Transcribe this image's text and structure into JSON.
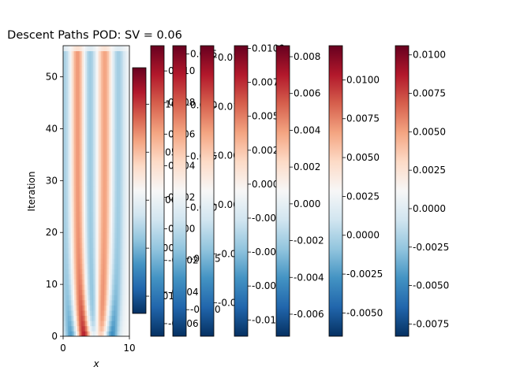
{
  "chart_data": {
    "type": "heatmap",
    "title": "Descent Paths POD: SV = 0.06",
    "xlabel": "x",
    "ylabel": "Iteration",
    "xlim": [
      0,
      10
    ],
    "ylim": [
      0,
      56
    ],
    "xticks": [
      "0",
      "10"
    ],
    "yticks": [
      "0",
      "10",
      "20",
      "30",
      "40",
      "50"
    ],
    "colormap": [
      "#053061",
      "#2166ac",
      "#4393c3",
      "#92c5de",
      "#d1e5f0",
      "#f7f7f7",
      "#fddbc7",
      "#f4a582",
      "#d6604d",
      "#b2182b",
      "#67001f"
    ],
    "heatmap": {
      "x_range": [
        0,
        10
      ],
      "y_range": [
        0,
        56
      ],
      "stripes": [
        {
          "x": 0.3,
          "v": -0.6
        },
        {
          "x": 2.2,
          "v": 0.85
        },
        {
          "x": 4.0,
          "v": -0.7
        },
        {
          "x": 6.3,
          "v": 0.75
        },
        {
          "x": 8.3,
          "v": -0.65
        }
      ]
    },
    "colorbars": [
      {
        "ticks": [
          "-0.010",
          "-0.005",
          "0.000",
          "0.005",
          "0.010"
        ],
        "tick_values": [
          -0.01,
          -0.005,
          0.0,
          0.005,
          0.01
        ],
        "vmin": -0.0118,
        "vmax": 0.0138
      },
      {
        "ticks": [
          "-0.006",
          "-0.004",
          "-0.002",
          "0.000",
          "0.002",
          "0.004",
          "0.006",
          "0.008",
          "0.010"
        ],
        "tick_values": [
          -0.006,
          -0.004,
          -0.002,
          0.0,
          0.002,
          0.004,
          0.006,
          0.008,
          0.01
        ],
        "vmin": -0.0068,
        "vmax": 0.0116
      },
      {
        "ticks": [
          "-0.010",
          "-0.005",
          "0.000",
          "0.005",
          "0.010",
          "0.015"
        ],
        "tick_values": [
          -0.01,
          -0.005,
          0.0,
          0.005,
          0.01,
          0.015
        ],
        "vmin": -0.0126,
        "vmax": 0.0158
      },
      {
        "ticks": [
          "-0.010",
          "-0.005",
          "0.000",
          "0.005",
          "0.010",
          "0.015"
        ],
        "tick_values": [
          -0.01,
          -0.005,
          0.0,
          0.005,
          0.01,
          0.015
        ],
        "vmin": -0.0134,
        "vmax": 0.0162
      },
      {
        "ticks": [
          "-0.0100",
          "-0.0075",
          "-0.0050",
          "-0.0025",
          "0.0000",
          "0.0025",
          "0.0050",
          "0.0075",
          "0.0100"
        ],
        "tick_values": [
          -0.01,
          -0.0075,
          -0.005,
          -0.0025,
          0.0,
          0.0025,
          0.005,
          0.0075,
          0.01
        ],
        "vmin": -0.0112,
        "vmax": 0.0102
      },
      {
        "ticks": [
          "-0.006",
          "-0.004",
          "-0.002",
          "0.000",
          "0.002",
          "0.004",
          "0.006",
          "0.008"
        ],
        "tick_values": [
          -0.006,
          -0.004,
          -0.002,
          0.0,
          0.002,
          0.004,
          0.006,
          0.008
        ],
        "vmin": -0.0072,
        "vmax": 0.0086
      },
      {
        "ticks": [
          "-0.0050",
          "-0.0025",
          "0.0000",
          "0.0025",
          "0.0050",
          "0.0075",
          "0.0100"
        ],
        "tick_values": [
          -0.005,
          -0.0025,
          0.0,
          0.0025,
          0.005,
          0.0075,
          0.01
        ],
        "vmin": -0.0065,
        "vmax": 0.0122
      },
      {
        "ticks": [
          "-0.0075",
          "-0.0050",
          "-0.0025",
          "0.0000",
          "0.0025",
          "0.0050",
          "0.0075",
          "0.0100"
        ],
        "tick_values": [
          -0.0075,
          -0.005,
          -0.0025,
          0.0,
          0.0025,
          0.005,
          0.0075,
          0.01
        ],
        "vmin": -0.0083,
        "vmax": 0.0106
      }
    ]
  }
}
